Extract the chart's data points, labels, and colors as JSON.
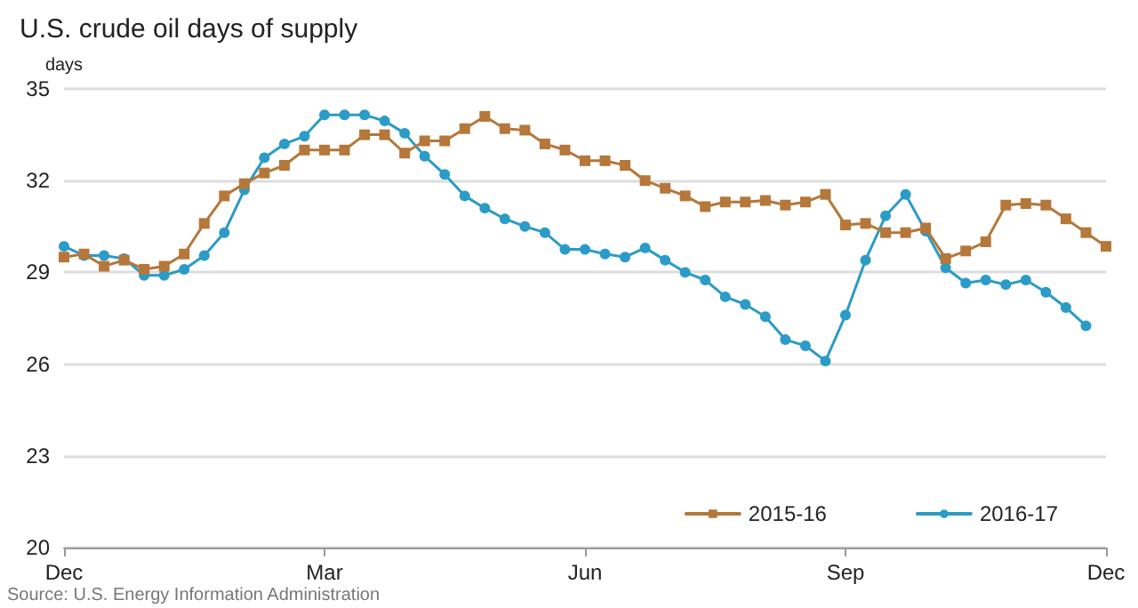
{
  "chart_data": {
    "type": "line",
    "title": "U.S. crude oil days of supply",
    "ylabel": "days",
    "categories": [
      "Dec",
      null,
      null,
      null,
      null,
      null,
      null,
      null,
      null,
      null,
      null,
      null,
      null,
      "Mar",
      null,
      null,
      null,
      null,
      null,
      null,
      null,
      null,
      null,
      null,
      null,
      null,
      "Jun",
      null,
      null,
      null,
      null,
      null,
      null,
      null,
      null,
      null,
      null,
      null,
      null,
      "Sep",
      null,
      null,
      null,
      null,
      null,
      null,
      null,
      null,
      null,
      null,
      null,
      null,
      "Dec"
    ],
    "series": [
      {
        "name": "2015-16",
        "color": "#b5773a",
        "marker": "square",
        "values": [
          29.5,
          29.6,
          29.2,
          29.4,
          29.1,
          29.2,
          29.6,
          30.6,
          31.5,
          31.9,
          32.25,
          32.5,
          33.0,
          33.0,
          33.0,
          33.5,
          33.5,
          32.9,
          33.3,
          33.3,
          33.7,
          34.1,
          33.7,
          33.65,
          33.2,
          33.0,
          32.65,
          32.65,
          32.5,
          32.0,
          31.75,
          31.5,
          31.15,
          31.3,
          31.3,
          31.35,
          31.2,
          31.3,
          31.55,
          30.55,
          30.6,
          30.3,
          30.3,
          30.45,
          29.45,
          29.7,
          30.0,
          31.2,
          31.25,
          31.2,
          30.75,
          30.3,
          29.85
        ]
      },
      {
        "name": "2016-17",
        "color": "#2b9bc7",
        "marker": "circle",
        "values": [
          29.85,
          29.55,
          29.55,
          29.45,
          28.9,
          28.9,
          29.1,
          29.55,
          30.3,
          31.7,
          32.75,
          33.2,
          33.45,
          34.15,
          34.15,
          34.15,
          33.95,
          33.55,
          32.8,
          32.2,
          31.5,
          31.1,
          30.75,
          30.5,
          30.3,
          29.75,
          29.75,
          29.6,
          29.5,
          29.8,
          29.4,
          29.0,
          28.75,
          28.2,
          27.95,
          27.55,
          26.8,
          26.6,
          26.1,
          27.6,
          29.4,
          30.85,
          31.55,
          30.35,
          29.15,
          28.65,
          28.75,
          28.6,
          28.75,
          28.35,
          27.85,
          27.25,
          null
        ]
      }
    ],
    "ylim": [
      20,
      35
    ],
    "yticks": [
      20,
      23,
      26,
      29,
      32,
      35
    ],
    "grid": "y",
    "legend": "bottom right",
    "annotations": [
      "Source: U.S. Energy Information Administration"
    ]
  }
}
